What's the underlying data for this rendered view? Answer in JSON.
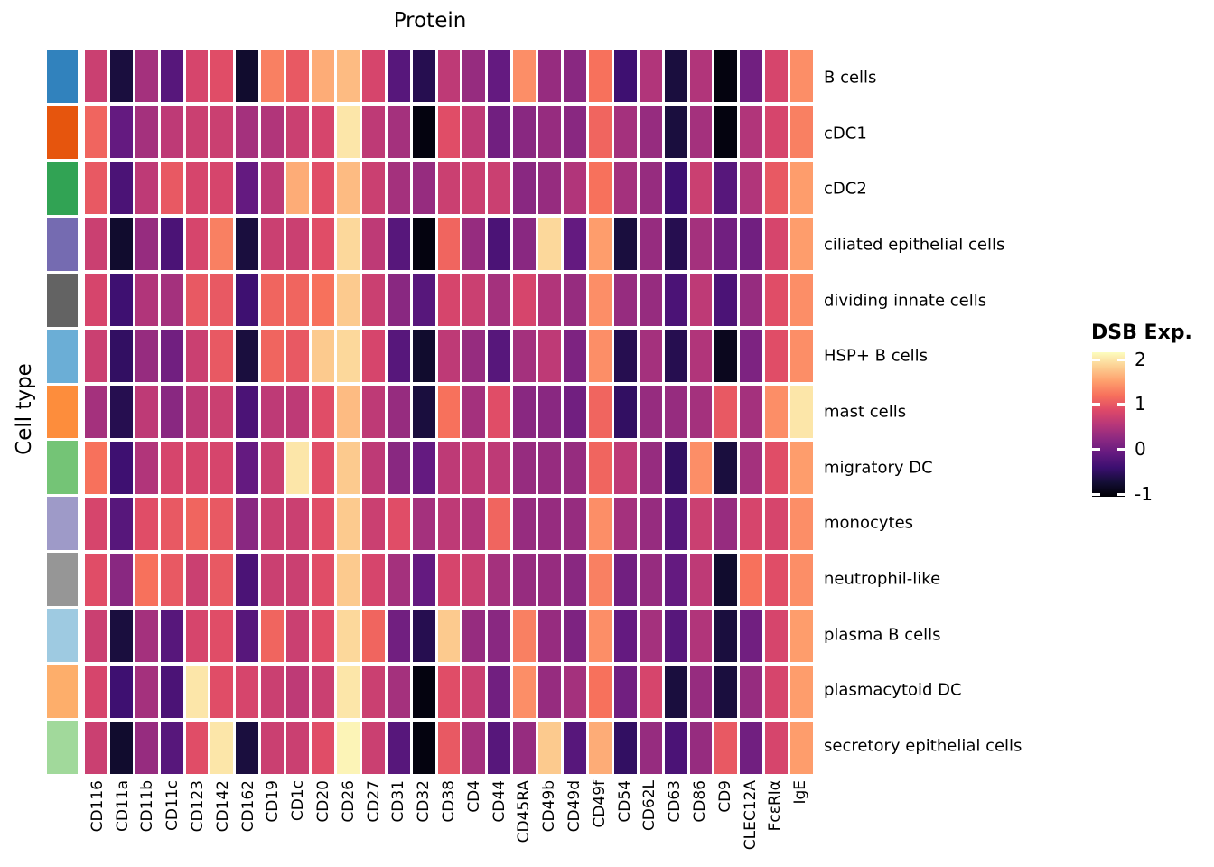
{
  "title": "Protein",
  "y_axis_label": "Cell type",
  "legend": {
    "title": "DSB Exp.",
    "tick_labels": [
      "2",
      "1",
      "0",
      "-1"
    ],
    "tick_values": [
      2,
      1,
      0,
      -1
    ],
    "bar_max_value": 2.16,
    "bar_min_value": -1.07
  },
  "chart_data": {
    "type": "heatmap",
    "colormap": "magma",
    "colormap_anchors": [
      "#000004",
      "#140e36",
      "#3b0f70",
      "#641a80",
      "#8c2981",
      "#b73779",
      "#de4968",
      "#f7705c",
      "#fe9f6d",
      "#fccf92",
      "#fcfdbf"
    ],
    "value_range": [
      -1.07,
      2.16
    ],
    "grid_gap_color": "#ffffff",
    "columns": [
      "CD116",
      "CD11a",
      "CD11b",
      "CD11c",
      "CD123",
      "CD142",
      "CD162",
      "CD19",
      "CD1c",
      "CD20",
      "CD26",
      "CD27",
      "CD31",
      "CD32",
      "CD38",
      "CD4",
      "CD44",
      "CD45RA",
      "CD49b",
      "CD49d",
      "CD49f",
      "CD54",
      "CD62L",
      "CD63",
      "CD86",
      "CD9",
      "CLEC12A",
      "FcεRIα",
      "IgE"
    ],
    "rows": [
      {
        "label": "B cells",
        "annotation_color": "#3182bd",
        "values": [
          0.7,
          -0.7,
          0.4,
          -0.2,
          0.8,
          0.9,
          -0.8,
          1.3,
          1.0,
          1.6,
          1.7,
          0.8,
          -0.2,
          -0.6,
          0.6,
          0.3,
          -0.1,
          1.4,
          0.3,
          0.2,
          1.2,
          -0.4,
          0.5,
          -0.7,
          0.5,
          -1.0,
          0.0,
          0.8,
          1.4
        ]
      },
      {
        "label": "cDC1",
        "annotation_color": "#e6550d",
        "values": [
          1.1,
          -0.1,
          0.4,
          0.6,
          0.7,
          0.7,
          0.4,
          0.5,
          0.7,
          0.8,
          2.0,
          0.6,
          0.4,
          -1.0,
          0.9,
          0.6,
          0.0,
          0.2,
          0.3,
          0.2,
          1.1,
          0.4,
          0.3,
          -0.7,
          0.4,
          -1.0,
          0.5,
          0.8,
          1.3
        ]
      },
      {
        "label": "cDC2",
        "annotation_color": "#31a354",
        "values": [
          1.0,
          -0.3,
          0.6,
          1.0,
          0.8,
          0.8,
          -0.1,
          0.6,
          1.6,
          0.9,
          1.7,
          0.7,
          0.4,
          0.3,
          0.7,
          0.7,
          0.7,
          0.2,
          0.3,
          0.5,
          1.2,
          0.4,
          0.3,
          -0.4,
          0.7,
          -0.2,
          0.5,
          1.0,
          1.5
        ]
      },
      {
        "label": "ciliated epithelial cells",
        "annotation_color": "#756bb1",
        "values": [
          0.7,
          -0.8,
          0.3,
          -0.3,
          0.8,
          1.3,
          -0.7,
          0.7,
          0.7,
          0.9,
          1.9,
          0.6,
          -0.2,
          -1.0,
          1.1,
          0.3,
          -0.3,
          0.2,
          1.9,
          -0.1,
          1.5,
          -0.7,
          0.3,
          -0.6,
          0.4,
          0.0,
          0.0,
          0.8,
          1.5
        ]
      },
      {
        "label": "dividing innate cells",
        "annotation_color": "#636363",
        "values": [
          0.8,
          -0.4,
          0.5,
          0.4,
          1.0,
          1.0,
          -0.4,
          1.1,
          1.1,
          1.2,
          1.8,
          0.7,
          0.2,
          -0.2,
          0.8,
          0.7,
          0.4,
          0.8,
          0.5,
          0.3,
          1.4,
          0.3,
          0.3,
          -0.3,
          0.6,
          -0.3,
          0.3,
          0.9,
          1.4
        ]
      },
      {
        "label": "HSP+ B cells",
        "annotation_color": "#6baed6",
        "values": [
          0.7,
          -0.5,
          0.3,
          0.0,
          0.7,
          1.0,
          -0.7,
          1.1,
          1.0,
          1.8,
          1.9,
          0.8,
          -0.2,
          -0.8,
          0.6,
          0.3,
          -0.2,
          0.4,
          0.6,
          0.1,
          1.4,
          -0.6,
          0.4,
          -0.6,
          0.5,
          -0.9,
          0.1,
          0.9,
          1.4
        ]
      },
      {
        "label": "mast cells",
        "annotation_color": "#fd8d3c",
        "values": [
          0.4,
          -0.6,
          0.6,
          0.2,
          0.6,
          0.7,
          -0.3,
          0.6,
          0.6,
          0.9,
          1.7,
          0.6,
          0.3,
          -0.7,
          1.2,
          0.4,
          0.9,
          0.2,
          0.2,
          0.0,
          1.1,
          -0.5,
          0.3,
          0.3,
          0.4,
          1.0,
          0.4,
          1.4,
          2.0
        ]
      },
      {
        "label": "migratory DC",
        "annotation_color": "#74c476",
        "values": [
          1.2,
          -0.4,
          0.5,
          0.8,
          0.8,
          0.8,
          -0.1,
          0.7,
          2.0,
          0.9,
          1.8,
          0.6,
          0.2,
          -0.1,
          0.6,
          0.6,
          0.6,
          0.3,
          0.3,
          0.3,
          1.1,
          0.6,
          0.3,
          -0.5,
          1.4,
          -0.7,
          0.4,
          0.9,
          1.5
        ]
      },
      {
        "label": "monocytes",
        "annotation_color": "#9e9ac8",
        "values": [
          0.8,
          -0.2,
          0.9,
          1.0,
          1.1,
          1.0,
          0.2,
          0.7,
          0.7,
          0.9,
          1.8,
          0.7,
          0.9,
          0.4,
          0.6,
          0.5,
          1.1,
          0.3,
          0.3,
          0.3,
          1.4,
          0.4,
          0.3,
          -0.2,
          0.7,
          0.3,
          0.8,
          0.8,
          1.4
        ]
      },
      {
        "label": "neutrophil-like",
        "annotation_color": "#969696",
        "values": [
          0.9,
          0.2,
          1.2,
          1.0,
          0.7,
          1.0,
          -0.3,
          0.7,
          0.7,
          0.9,
          1.8,
          0.8,
          0.4,
          -0.1,
          0.8,
          0.7,
          0.4,
          0.3,
          0.3,
          0.2,
          1.3,
          0.0,
          0.3,
          -0.1,
          0.6,
          -0.8,
          1.2,
          0.9,
          1.4
        ]
      },
      {
        "label": "plasma B cells",
        "annotation_color": "#9ecae1",
        "values": [
          0.7,
          -0.7,
          0.4,
          -0.2,
          0.8,
          0.9,
          -0.2,
          1.1,
          0.7,
          0.9,
          1.9,
          1.1,
          0.0,
          -0.6,
          1.8,
          0.3,
          0.2,
          1.3,
          0.3,
          0.1,
          1.4,
          -0.1,
          0.4,
          -0.2,
          0.5,
          -0.7,
          0.0,
          0.8,
          1.5
        ]
      },
      {
        "label": "plasmacytoid DC",
        "annotation_color": "#fdae6b",
        "values": [
          0.8,
          -0.4,
          0.4,
          -0.3,
          2.0,
          0.9,
          0.8,
          0.7,
          0.6,
          0.7,
          2.0,
          0.7,
          0.4,
          -1.0,
          0.9,
          0.7,
          0.0,
          1.4,
          0.3,
          0.4,
          1.2,
          0.0,
          0.8,
          -0.7,
          0.3,
          -0.7,
          0.3,
          0.8,
          1.5
        ]
      },
      {
        "label": "secretory epithelial cells",
        "annotation_color": "#a1d99b",
        "values": [
          0.7,
          -0.8,
          0.3,
          -0.2,
          0.9,
          2.0,
          -0.7,
          0.7,
          0.7,
          0.9,
          2.1,
          0.7,
          -0.2,
          -1.0,
          1.0,
          0.4,
          -0.2,
          0.3,
          1.8,
          -0.2,
          1.6,
          -0.5,
          0.3,
          -0.3,
          0.3,
          1.0,
          0.0,
          0.8,
          1.5
        ]
      }
    ]
  }
}
